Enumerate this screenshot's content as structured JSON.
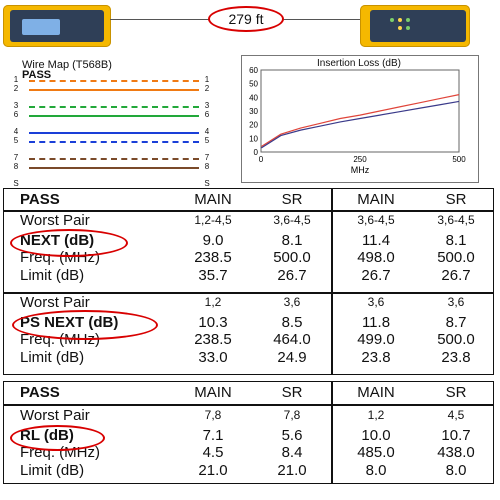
{
  "cable": {
    "length": "279 ft"
  },
  "wiremap": {
    "title": "Wire Map (T568B)",
    "status": "PASS",
    "pins": [
      "1",
      "2",
      "3",
      "6",
      "4",
      "5",
      "7",
      "8",
      "S"
    ],
    "colors": {
      "orange": "#f07a13",
      "green": "#22a83a",
      "blue": "#1a3fd8",
      "brown": "#7a4a2a"
    }
  },
  "insertion_loss": {
    "title": "Insertion Loss (dB)",
    "xlabel": "MHz",
    "x_ticks": [
      "0",
      "250",
      "500"
    ],
    "y_ticks": [
      "0",
      "10",
      "20",
      "30",
      "40",
      "50",
      "60"
    ]
  },
  "chart_data": {
    "type": "line",
    "title": "Insertion Loss (dB)",
    "xlabel": "MHz",
    "ylabel": "",
    "xlim": [
      0,
      500
    ],
    "ylim": [
      0,
      60
    ],
    "series": [
      {
        "color": "#e0453a",
        "x": [
          1,
          50,
          100,
          150,
          200,
          250,
          300,
          350,
          400,
          450,
          500
        ],
        "y": [
          4,
          13,
          17.5,
          21,
          24.5,
          27,
          30,
          33,
          36,
          39,
          42
        ]
      },
      {
        "color": "#3a3a8a",
        "x": [
          1,
          50,
          100,
          150,
          200,
          250,
          300,
          350,
          400,
          450,
          500
        ],
        "y": [
          3,
          12,
          16,
          19,
          22,
          24.5,
          27,
          29.5,
          32,
          34.5,
          37
        ]
      }
    ]
  },
  "table1": {
    "status": "PASS",
    "headers": [
      "MAIN",
      "SR",
      "MAIN",
      "SR"
    ],
    "sections": [
      {
        "name": "NEXT (dB)",
        "worst_pair": [
          "1,2-4,5",
          "3,6-4,5",
          "3,6-4,5",
          "3,6-4,5"
        ],
        "value": [
          "9.0",
          "8.1",
          "11.4",
          "8.1"
        ],
        "freq": [
          "238.5",
          "500.0",
          "498.0",
          "500.0"
        ],
        "limit": [
          "35.7",
          "26.7",
          "26.7",
          "26.7"
        ]
      },
      {
        "name": "PS NEXT (dB)",
        "worst_pair": [
          "1,2",
          "3,6",
          "3,6",
          "3,6"
        ],
        "value": [
          "10.3",
          "8.5",
          "11.8",
          "8.7"
        ],
        "freq": [
          "238.5",
          "464.0",
          "499.0",
          "500.0"
        ],
        "limit": [
          "33.0",
          "24.9",
          "23.8",
          "23.8"
        ]
      }
    ]
  },
  "table2": {
    "status": "PASS",
    "headers": [
      "MAIN",
      "SR",
      "MAIN",
      "SR"
    ],
    "sections": [
      {
        "name": "RL (dB)",
        "worst_pair": [
          "7,8",
          "7,8",
          "1,2",
          "4,5"
        ],
        "value": [
          "7.1",
          "5.6",
          "10.0",
          "10.7"
        ],
        "freq": [
          "4.5",
          "8.4",
          "485.0",
          "438.0"
        ],
        "limit": [
          "21.0",
          "21.0",
          "8.0",
          "8.0"
        ]
      }
    ]
  },
  "labels": {
    "worst_pair": "Worst Pair",
    "freq": "Freq. (MHz)",
    "limit": "Limit (dB)"
  }
}
